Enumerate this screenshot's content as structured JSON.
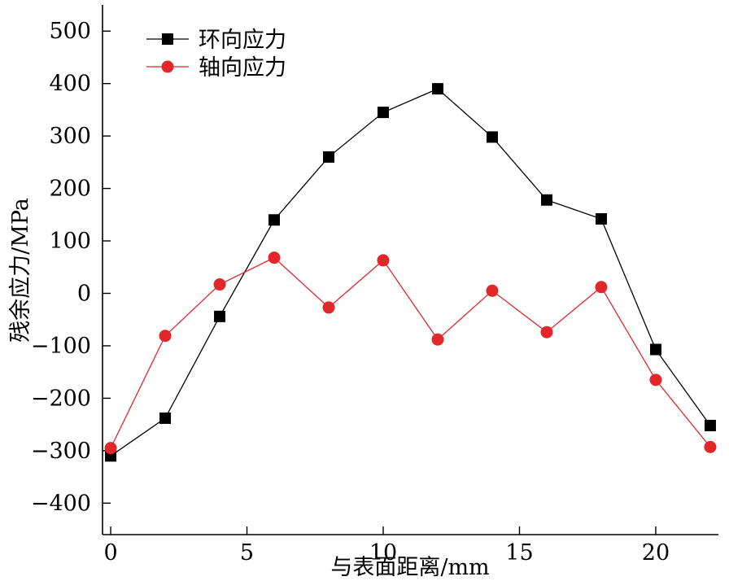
{
  "chart_data": {
    "type": "line",
    "title": "",
    "xlabel": "与表面距离/mm",
    "ylabel": "残余应力/MPa",
    "xlim": [
      -0.3,
      22.3
    ],
    "ylim": [
      -460,
      550
    ],
    "xticks": [
      0,
      5,
      10,
      15,
      20
    ],
    "yticks": [
      -400,
      -300,
      -200,
      -100,
      0,
      100,
      200,
      300,
      400,
      500
    ],
    "ytick_labels": [
      "−400",
      "−300",
      "−200",
      "−100",
      "0",
      "100",
      "200",
      "300",
      "400",
      "500"
    ],
    "grid": false,
    "legend_position": "top-left",
    "series": [
      {
        "name": "环向应力",
        "color": "#000000",
        "marker": "square",
        "x": [
          0,
          2,
          4,
          6,
          8,
          10,
          12,
          14,
          16,
          18,
          20,
          22
        ],
        "y": [
          -310,
          -238,
          -44,
          140,
          260,
          345,
          390,
          298,
          178,
          142,
          -107,
          -252
        ]
      },
      {
        "name": "轴向应力",
        "color": "#e3262a",
        "marker": "circle",
        "x": [
          0,
          2,
          4,
          6,
          8,
          10,
          12,
          14,
          16,
          18,
          20,
          22
        ],
        "y": [
          -295,
          -81,
          17,
          68,
          -27,
          63,
          -88,
          5,
          -74,
          12,
          -165,
          -293
        ]
      }
    ]
  }
}
